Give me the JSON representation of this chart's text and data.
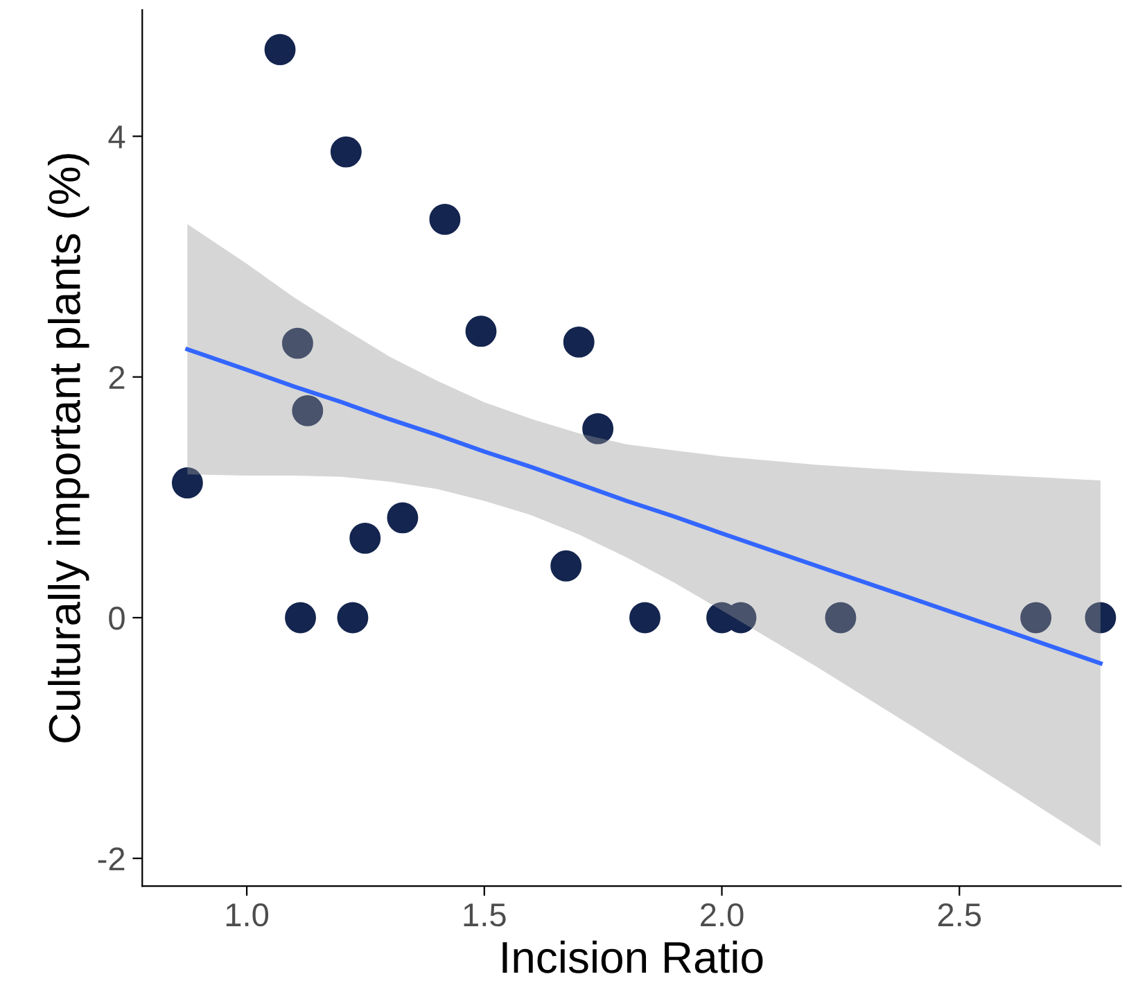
{
  "chart_data": {
    "type": "scatter",
    "xlabel": "Incision Ratio",
    "ylabel": "Culturally important plants (%)",
    "xlim": [
      0.78,
      2.84
    ],
    "ylim": [
      -2.23,
      5.05
    ],
    "xticks": [
      {
        "value": 1.0,
        "label": "1.0"
      },
      {
        "value": 1.5,
        "label": "1.5"
      },
      {
        "value": 2.0,
        "label": "2.0"
      },
      {
        "value": 2.5,
        "label": "2.5"
      }
    ],
    "yticks": [
      -2,
      0,
      2,
      4
    ],
    "grid": false,
    "legend": false,
    "series": [
      {
        "color": "#14254f",
        "marker": "circle",
        "x": [
          0.875,
          1.07,
          1.107,
          1.128,
          1.113,
          1.209,
          1.223,
          1.249,
          1.328,
          1.417,
          1.493,
          1.672,
          1.699,
          1.739,
          1.838,
          2.0,
          2.04,
          2.25,
          2.661,
          2.797
        ],
        "values": [
          1.12,
          4.72,
          2.28,
          1.72,
          0,
          3.87,
          0,
          0.66,
          0.83,
          3.31,
          2.38,
          0.43,
          2.29,
          1.57,
          0,
          0,
          0,
          0,
          0,
          0
        ]
      },
      {
        "type": "line",
        "color": "#3366ff",
        "x": [
          0.875,
          1.0,
          1.1,
          1.2,
          1.3,
          1.4,
          1.5,
          1.6,
          1.7,
          1.8,
          1.9,
          2.0,
          2.2,
          2.4,
          2.6,
          2.797
        ],
        "values": [
          2.23,
          2.06,
          1.92,
          1.79,
          1.65,
          1.52,
          1.38,
          1.25,
          1.11,
          0.97,
          0.84,
          0.7,
          0.43,
          0.16,
          -0.11,
          -0.38
        ],
        "lower": [
          1.19,
          1.18,
          1.18,
          1.17,
          1.13,
          1.07,
          0.97,
          0.85,
          0.69,
          0.5,
          0.29,
          0.06,
          -0.41,
          -0.9,
          -1.4,
          -1.9
        ],
        "upper": [
          3.27,
          2.94,
          2.66,
          2.41,
          2.17,
          1.97,
          1.79,
          1.65,
          1.53,
          1.44,
          1.39,
          1.34,
          1.27,
          1.22,
          1.18,
          1.14
        ]
      }
    ]
  }
}
